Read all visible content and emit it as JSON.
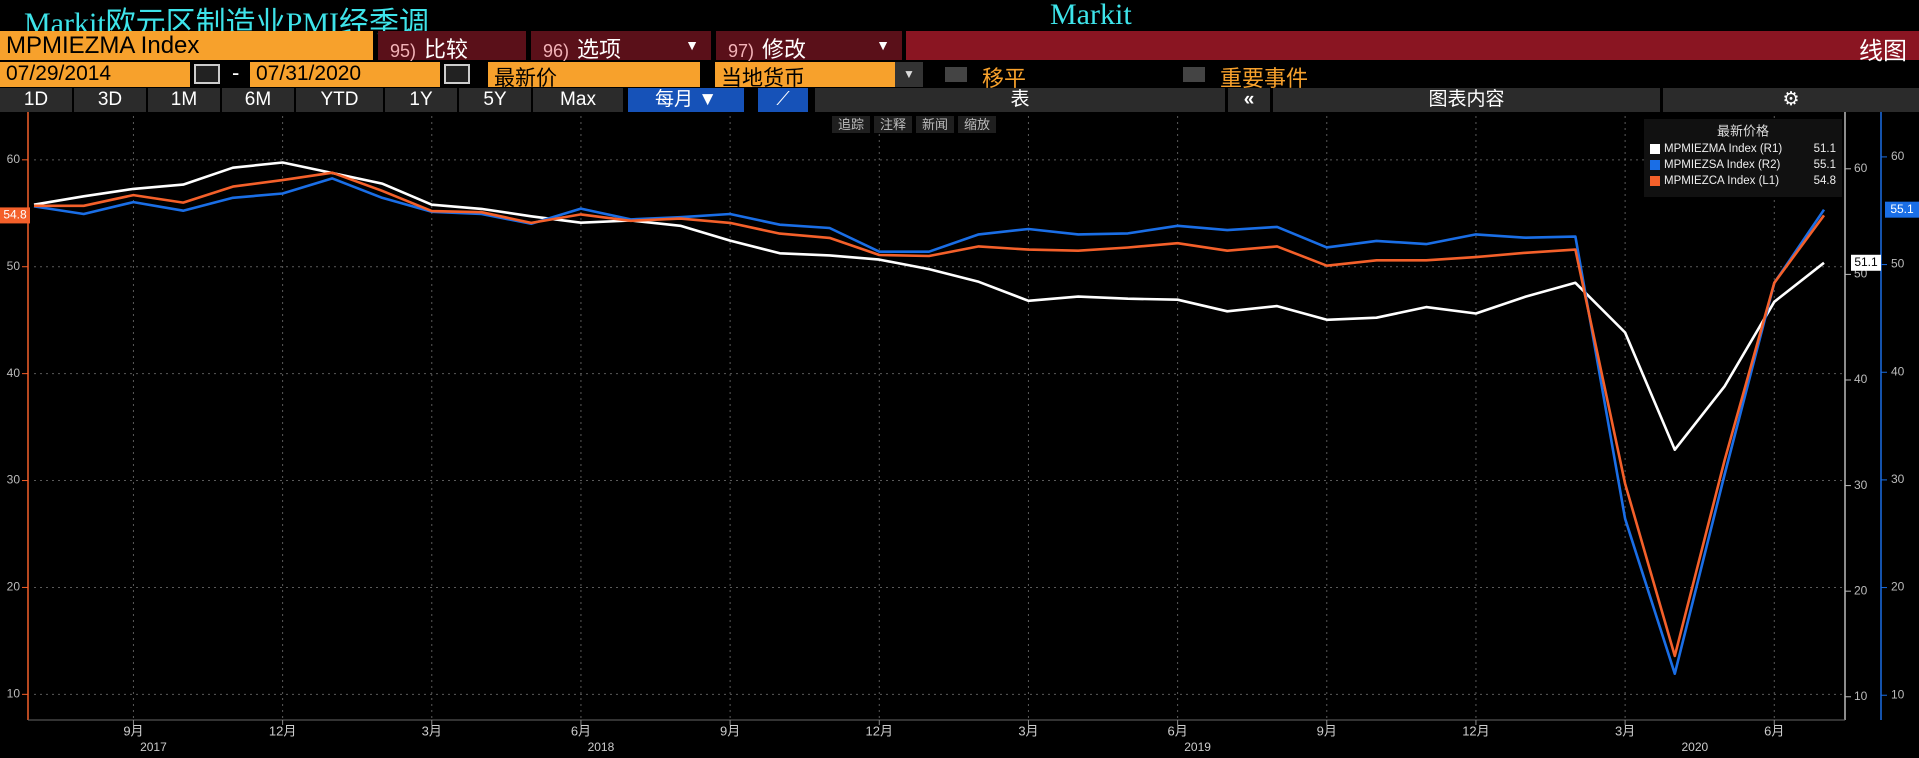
{
  "header": {
    "title": "Markit欧元区制造业PMI经季调",
    "source": "Markit"
  },
  "toolbar": {
    "ticker": "MPMIEZMA Index",
    "menu": [
      {
        "num": "95)",
        "label": "比较"
      },
      {
        "num": "96)",
        "label": "选项"
      },
      {
        "num": "97)",
        "label": "修改"
      }
    ],
    "view": "线图"
  },
  "range": {
    "start": "07/29/2014",
    "sep": "-",
    "end": "07/31/2020",
    "field": "最新价",
    "currency": "当地货币",
    "smooth": "移平",
    "events": "重要事件"
  },
  "periods": [
    "1D",
    "3D",
    "1M",
    "6M",
    "YTD",
    "1Y",
    "5Y",
    "Max"
  ],
  "frequency": "每月",
  "table": "表",
  "chart_content": "图表内容",
  "chart_tools": [
    "追踪",
    "注释",
    "新闻",
    "缩放"
  ],
  "chart_data": {
    "type": "line",
    "legend_title": "最新价格",
    "grid": true,
    "categories": [
      null,
      null,
      "9月",
      null,
      null,
      "12月",
      null,
      null,
      "3月",
      null,
      null,
      "6月",
      null,
      null,
      "9月",
      null,
      null,
      "12月",
      null,
      null,
      "3月",
      null,
      null,
      "6月",
      null,
      null,
      "9月",
      null,
      null,
      "12月",
      null,
      null,
      "3月",
      null,
      null,
      "6月",
      null
    ],
    "years": [
      null,
      null,
      "2017",
      null,
      null,
      null,
      null,
      null,
      null,
      null,
      null,
      "2018",
      null,
      null,
      null,
      null,
      null,
      null,
      null,
      null,
      null,
      null,
      null,
      "2019",
      null,
      null,
      null,
      null,
      null,
      null,
      null,
      null,
      null,
      "2020",
      null,
      null,
      null
    ],
    "ylim": [
      7.6,
      64.1
    ],
    "yticks": [
      10,
      20,
      30,
      40,
      50,
      60
    ],
    "y2lim": [
      7.8,
      65.0
    ],
    "y2ticks": [
      10,
      20,
      30,
      40,
      50,
      60
    ],
    "y3lim": [
      7.7,
      63.8
    ],
    "y3ticks": [
      10,
      20,
      30,
      40,
      50,
      60
    ],
    "series": [
      {
        "name": "MPMIEZMA Index  (R1)",
        "color": "#ffffff",
        "axis": "y2",
        "values": [
          56.6,
          57.4,
          58.1,
          58.5,
          60.1,
          60.6,
          59.6,
          58.6,
          56.6,
          56.2,
          55.5,
          54.9,
          55.1,
          54.6,
          53.2,
          52.0,
          51.8,
          51.4,
          50.5,
          49.3,
          47.5,
          47.9,
          47.7,
          47.6,
          46.5,
          47.0,
          45.7,
          45.9,
          46.9,
          46.3,
          47.9,
          49.2,
          44.5,
          33.4,
          39.4,
          47.4,
          51.1
        ]
      },
      {
        "name": "MPMIEZSA Index  (R2)",
        "color": "#1a6ee6",
        "axis": "y3",
        "values": [
          55.4,
          54.7,
          55.8,
          55.0,
          56.2,
          56.6,
          58.0,
          56.2,
          54.9,
          54.7,
          53.8,
          55.2,
          54.2,
          54.4,
          54.7,
          53.7,
          53.4,
          51.2,
          51.2,
          52.8,
          53.3,
          52.8,
          52.9,
          53.6,
          53.2,
          53.5,
          51.6,
          52.2,
          51.9,
          52.8,
          52.5,
          52.6,
          26.4,
          12.0,
          30.5,
          48.3,
          55.1
        ]
      },
      {
        "name": "MPMIEZCA Index  (L1)",
        "color": "#f4602a",
        "axis": "y",
        "values": [
          55.7,
          55.7,
          56.7,
          56.0,
          57.5,
          58.1,
          58.8,
          57.1,
          55.2,
          55.1,
          54.1,
          54.9,
          54.3,
          54.5,
          54.1,
          53.1,
          52.7,
          51.1,
          51.0,
          51.9,
          51.6,
          51.5,
          51.8,
          52.2,
          51.5,
          51.9,
          50.1,
          50.6,
          50.6,
          50.9,
          51.3,
          51.6,
          29.7,
          13.6,
          31.9,
          48.5,
          54.8
        ]
      }
    ]
  }
}
